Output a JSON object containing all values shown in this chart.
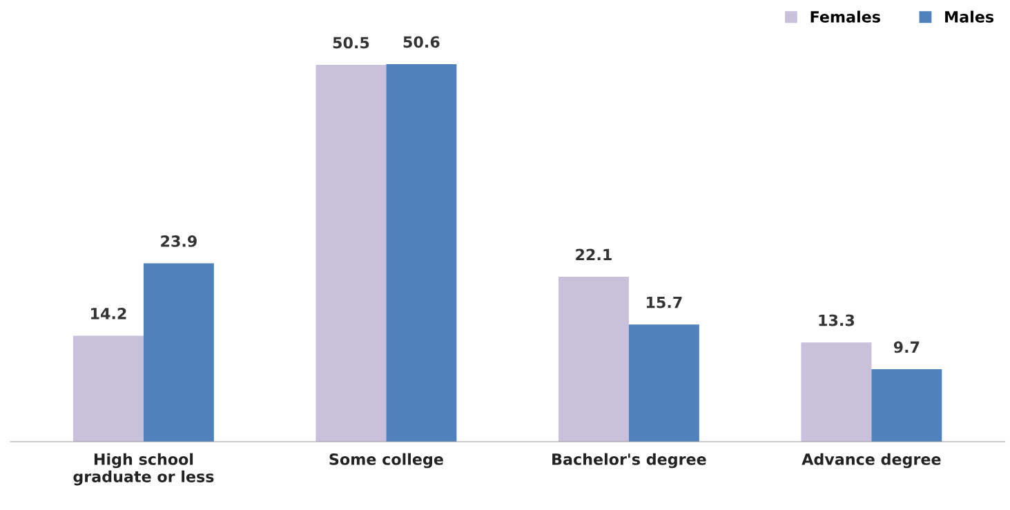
{
  "chart_data": {
    "type": "bar",
    "categories": [
      "High school\ngraduate or less",
      "Some college",
      "Bachelor's degree",
      "Advance degree"
    ],
    "series": [
      {
        "name": "Females",
        "color": "#c9c0dc",
        "values": [
          14.2,
          50.5,
          22.1,
          13.3
        ]
      },
      {
        "name": "Males",
        "color": "#4f81bd",
        "values": [
          23.9,
          50.6,
          15.7,
          9.7
        ]
      }
    ],
    "data_labels": true,
    "legend": "top right",
    "grid": false
  }
}
